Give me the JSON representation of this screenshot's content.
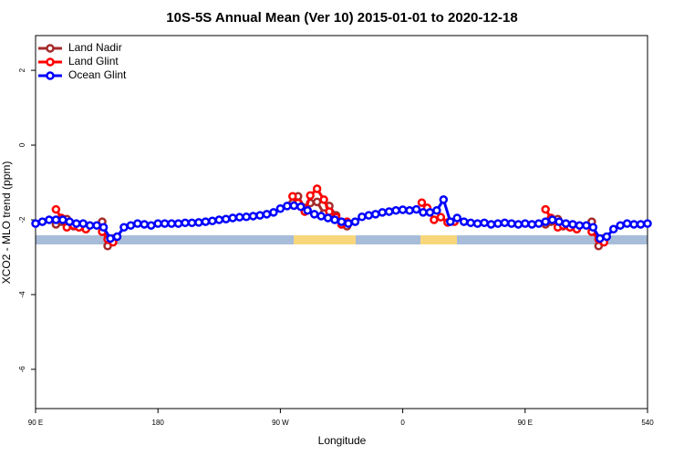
{
  "chart_data": {
    "type": "line",
    "title": "10S-5S Annual Mean (Ver 10)   2015-01-01 to 2020-12-18",
    "x_label": "Longitude",
    "y_label": "XCO2 - MLO trend (ppm)",
    "xlim": [
      90,
      540
    ],
    "ylim": [
      -7.05,
      2.93
    ],
    "xticks": [
      {
        "value": 90,
        "label": "90 E"
      },
      180,
      {
        "value": 270,
        "label": "90 W"
      },
      {
        "value": 360,
        "label": "0"
      },
      {
        "value": 450,
        "label": "90 E"
      },
      540
    ],
    "yticks": [
      -6,
      -4,
      -2,
      0,
      2
    ],
    "legend": "top-left",
    "series": [
      {
        "name": "Land Nadir",
        "color": "#a52a2a",
        "x": [
          105,
          109,
          113,
          118,
          122,
          127,
          133,
          139,
          143,
          147,
          200,
          279,
          283,
          288,
          292,
          297,
          302,
          306,
          311,
          315,
          319,
          420,
          465,
          469,
          474,
          478,
          483,
          488,
          494,
          499,
          504,
          508
        ],
        "values": [
          -2.12,
          -2.05,
          -1.98,
          -2.17,
          -2.2,
          -2.25,
          null,
          -2.05,
          -2.7,
          -2.5,
          null,
          -1.55,
          -1.37,
          -1.68,
          -1.55,
          -1.52,
          -1.83,
          -1.63,
          -1.88,
          -2.12,
          -2.17,
          null,
          -2.12,
          -2.05,
          -1.98,
          -2.17,
          -2.2,
          -2.25,
          null,
          -2.05,
          -2.7,
          -2.5
        ]
      },
      {
        "name": "Land Glint",
        "color": "#ff0000",
        "x": [
          105,
          109,
          113,
          118,
          122,
          127,
          133,
          139,
          143,
          147,
          200,
          279,
          283,
          288,
          292,
          297,
          302,
          306,
          311,
          315,
          319,
          340,
          374,
          378,
          383,
          388,
          393,
          398,
          430,
          465,
          469,
          474,
          478,
          483,
          488,
          494,
          499,
          504,
          508
        ],
        "values": [
          -1.72,
          -1.95,
          -2.2,
          -2.15,
          -2.2,
          -2.25,
          null,
          -2.32,
          -2.52,
          -2.6,
          null,
          -1.37,
          -1.55,
          -1.78,
          -1.35,
          -1.17,
          -1.46,
          -1.78,
          -1.93,
          -2.12,
          -2.05,
          null,
          -1.54,
          -1.68,
          -2.0,
          -1.93,
          -2.07,
          -2.05,
          null,
          -1.72,
          -1.95,
          -2.2,
          -2.15,
          -2.2,
          -2.25,
          null,
          -2.32,
          -2.52,
          -2.6
        ]
      },
      {
        "name": "Ocean Glint",
        "color": "#0000ff",
        "x": [
          90,
          95,
          100,
          105,
          110,
          115,
          120,
          125,
          130,
          135,
          140,
          145,
          150,
          155,
          160,
          165,
          170,
          175,
          180,
          185,
          190,
          195,
          200,
          205,
          210,
          215,
          220,
          225,
          230,
          235,
          240,
          245,
          250,
          255,
          260,
          265,
          270,
          275,
          280,
          285,
          290,
          295,
          300,
          305,
          310,
          315,
          320,
          325,
          330,
          335,
          340,
          345,
          350,
          355,
          360,
          365,
          370,
          375,
          380,
          385,
          390,
          395,
          400,
          405,
          410,
          415,
          420,
          425,
          430,
          435,
          440,
          445,
          450,
          455,
          460,
          465,
          470,
          475,
          480,
          485,
          490,
          495,
          500,
          505,
          510,
          515,
          520,
          525,
          530,
          535,
          540
        ],
        "values": [
          -2.1,
          -2.05,
          -2.0,
          -2.0,
          -2.0,
          -2.05,
          -2.1,
          -2.1,
          -2.15,
          -2.15,
          -2.2,
          -2.5,
          -2.45,
          -2.2,
          -2.15,
          -2.1,
          -2.12,
          -2.15,
          -2.1,
          -2.1,
          -2.1,
          -2.1,
          -2.08,
          -2.08,
          -2.07,
          -2.05,
          -2.03,
          -2.0,
          -1.98,
          -1.95,
          -1.93,
          -1.92,
          -1.9,
          -1.88,
          -1.85,
          -1.8,
          -1.7,
          -1.63,
          -1.62,
          -1.65,
          -1.75,
          -1.85,
          -1.9,
          -1.95,
          -2.0,
          -2.05,
          -2.1,
          -2.05,
          -1.92,
          -1.88,
          -1.85,
          -1.8,
          -1.78,
          -1.75,
          -1.73,
          -1.75,
          -1.72,
          -1.8,
          -1.8,
          -1.75,
          -1.46,
          -2.05,
          -1.95,
          -2.05,
          -2.08,
          -2.1,
          -2.08,
          -2.12,
          -2.1,
          -2.08,
          -2.1,
          -2.12,
          -2.1,
          -2.12,
          -2.1,
          -2.05,
          -2.0,
          -2.05,
          -2.1,
          -2.12,
          -2.15,
          -2.15,
          -2.2,
          -2.5,
          -2.45,
          -2.25,
          -2.15,
          -2.1,
          -2.12,
          -2.12,
          -2.1
        ]
      }
    ]
  }
}
